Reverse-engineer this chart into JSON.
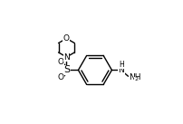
{
  "bg_color": "#ffffff",
  "line_color": "#000000",
  "lw": 1.0,
  "fs": 6.5,
  "figsize": [
    2.03,
    1.37
  ],
  "dpi": 100,
  "xlim": [
    0.0,
    1.0
  ],
  "ylim": [
    0.0,
    1.0
  ]
}
